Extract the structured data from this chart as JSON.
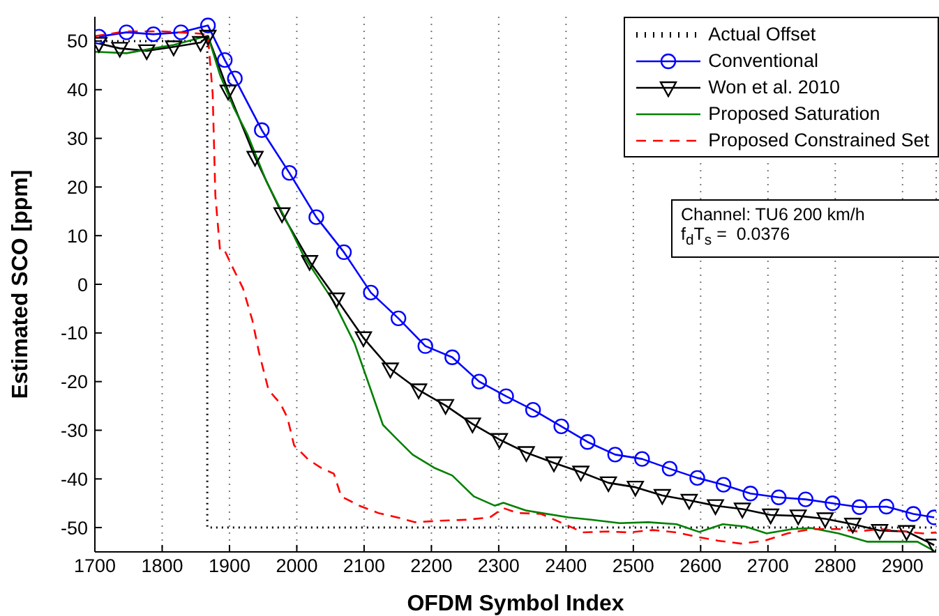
{
  "chart_data": {
    "type": "line",
    "xlabel": "OFDM Symbol Index",
    "ylabel": "Estimated SCO [ppm]",
    "xlim": [
      1700,
      2950
    ],
    "xticks": [
      1700,
      1800,
      1900,
      2000,
      2100,
      2200,
      2300,
      2400,
      2500,
      2600,
      2700,
      2800,
      2900
    ],
    "ylim": [
      -55,
      55
    ],
    "yticks": [
      -50,
      -40,
      -30,
      -20,
      -10,
      0,
      10,
      20,
      30,
      40,
      50
    ],
    "grid": "x",
    "legend": "top right",
    "annotations": [
      "Channel: TU6 200 km/h\nf$_{d}$T$_{s}$ =  0.0376"
    ],
    "series": [
      {
        "name": "Actual Offset",
        "color": "#000000",
        "line_style": "dotted",
        "marker": "none",
        "x": [
          1700,
          1867,
          1867,
          2950
        ],
        "values": [
          50,
          50,
          -50,
          -50
        ]
      },
      {
        "name": "Conventional",
        "color": "#0000ff",
        "line_style": "solid",
        "marker": "circle",
        "x": [
          1706,
          1747,
          1787,
          1828,
          1868,
          1893,
          1908,
          1948,
          1989,
          2029,
          2070,
          2110,
          2151,
          2191,
          2231,
          2271,
          2311,
          2351,
          2393,
          2432,
          2473,
          2513,
          2554,
          2595,
          2634,
          2674,
          2716,
          2756,
          2796,
          2836,
          2876,
          2916,
          2947
        ],
        "values": [
          50.9,
          51.8,
          51.4,
          51.8,
          53.2,
          46.1,
          42.3,
          31.7,
          22.9,
          13.8,
          6.6,
          -1.7,
          -7,
          -12.7,
          -15,
          -20,
          -23,
          -25.8,
          -29.2,
          -32.4,
          -35,
          -35.9,
          -37.9,
          -39.8,
          -41.2,
          -43,
          -43.8,
          -44.2,
          -45,
          -45.8,
          -45.7,
          -47.2,
          -47.9
        ]
      },
      {
        "name": "Won et al. 2010",
        "color": "#000000",
        "line_style": "solid",
        "marker": "triangle",
        "x": [
          1706,
          1737,
          1777,
          1817,
          1857,
          1868,
          1898,
          1938,
          1978,
          2019,
          2059,
          2099,
          2139,
          2181,
          2221,
          2261,
          2301,
          2341,
          2382,
          2422,
          2463,
          2503,
          2543,
          2583,
          2622,
          2662,
          2704,
          2745,
          2785,
          2826,
          2866,
          2906,
          2947
        ],
        "values": [
          49.5,
          48.5,
          48,
          48.8,
          49.7,
          51,
          39.7,
          26.1,
          14.5,
          4.7,
          -3,
          -11,
          -17.4,
          -21.7,
          -24.9,
          -28.7,
          -31.9,
          -34.6,
          -36.7,
          -38.6,
          -40.8,
          -41.7,
          -43.4,
          -44.4,
          -45.5,
          -46.2,
          -47.4,
          -47.6,
          -48.2,
          -49.3,
          -50.6,
          -50.8,
          -53.6
        ]
      },
      {
        "name": "Proposed Saturation",
        "color": "#008000",
        "line_style": "solid",
        "marker": "none",
        "x": [
          1700,
          1747,
          1787,
          1817,
          1844,
          1868,
          1886,
          1906,
          1927,
          1955,
          1983,
          2010,
          2037,
          2055,
          2086,
          2110,
          2128,
          2148,
          2172,
          2204,
          2231,
          2263,
          2294,
          2307,
          2341,
          2363,
          2404,
          2439,
          2480,
          2522,
          2564,
          2598,
          2633,
          2667,
          2698,
          2736,
          2764,
          2805,
          2847,
          2888,
          2922,
          2947
        ],
        "values": [
          47.8,
          47.5,
          48.5,
          49.2,
          50.2,
          51.1,
          43,
          36.4,
          30.7,
          21.1,
          13.5,
          5.9,
          0.2,
          -3.6,
          -12.2,
          -21.7,
          -28.9,
          -31.7,
          -35,
          -37.7,
          -39.3,
          -43.6,
          -45.5,
          -44.9,
          -46.5,
          -47,
          -47.9,
          -48.4,
          -49.1,
          -48.9,
          -49.3,
          -50.9,
          -49.3,
          -49.8,
          -51.2,
          -50.3,
          -50.1,
          -51.2,
          -52.9,
          -52.9,
          -52.9,
          -54.8
        ]
      },
      {
        "name": "Proposed Constrained Set",
        "color": "#ff0000",
        "line_style": "dashed",
        "marker": "none",
        "x": [
          1700,
          1747,
          1800,
          1860,
          1868,
          1875,
          1879,
          1886,
          1893,
          1906,
          1920,
          1934,
          1944,
          1958,
          1976,
          1986,
          1996,
          2017,
          2038,
          2055,
          2066,
          2093,
          2121,
          2149,
          2176,
          2211,
          2252,
          2287,
          2307,
          2328,
          2363,
          2398,
          2425,
          2460,
          2494,
          2529,
          2564,
          2598,
          2626,
          2660,
          2695,
          2729,
          2764,
          2805,
          2833,
          2867,
          2902,
          2930,
          2950
        ],
        "values": [
          51,
          52,
          52,
          51.5,
          51,
          39.2,
          18.3,
          6.9,
          6.9,
          3.1,
          -0.8,
          -7.4,
          -14.1,
          -21.7,
          -24.6,
          -27.4,
          -33.1,
          -36,
          -37.9,
          -38.9,
          -43.6,
          -45.5,
          -47,
          -47.9,
          -48.9,
          -48.6,
          -48.4,
          -47.9,
          -46,
          -47,
          -47.2,
          -49.3,
          -51,
          -50.8,
          -51,
          -50.5,
          -51,
          -52,
          -52.7,
          -53.3,
          -52.7,
          -51.2,
          -50.3,
          -50.3,
          -50.8,
          -50.3,
          -50.8,
          -51.2,
          -51
        ]
      }
    ]
  }
}
